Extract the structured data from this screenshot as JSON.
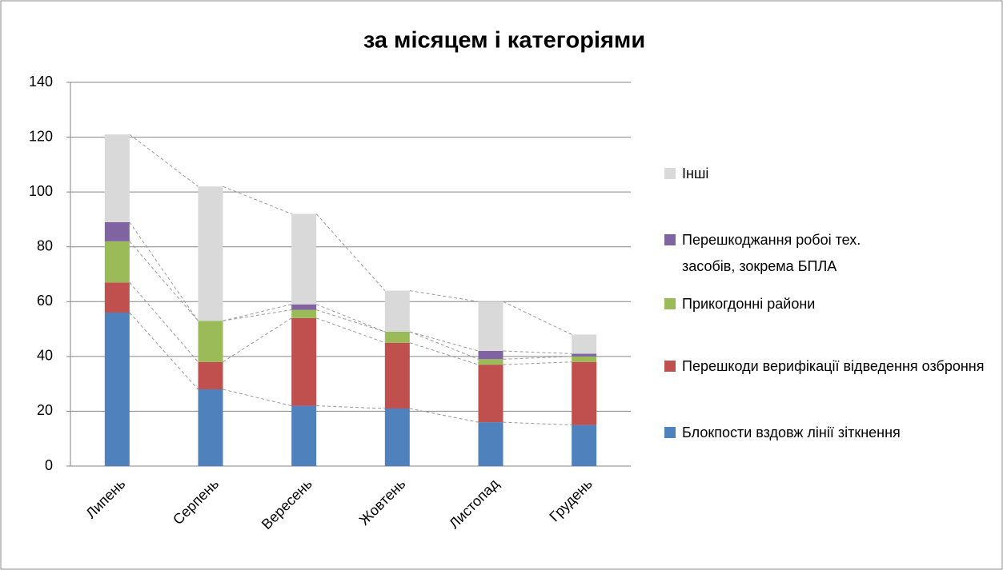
{
  "chart_data": {
    "type": "stacked_bar",
    "title": "за місяцем і категоріями",
    "categories": [
      "Липень",
      "Серпень",
      "Вересень",
      "Жовтень",
      "Листопад",
      "Грудень"
    ],
    "series": [
      {
        "name": "Блокпости вздовж лінії зіткнення",
        "color": "#4f81bd",
        "values": [
          56,
          28,
          22,
          21,
          16,
          15
        ]
      },
      {
        "name": "Перешкоди верифікації відведення озброння",
        "color": "#c0504d",
        "values": [
          11,
          10,
          32,
          24,
          21,
          23
        ]
      },
      {
        "name": "Прикогдонні райони",
        "color": "#9bbb59",
        "values": [
          15,
          15,
          3,
          4,
          2,
          2
        ]
      },
      {
        "name": "Перешкоджання робоі тех. засобів, зокрема БПЛА",
        "color": "#8064a2",
        "values": [
          7,
          0,
          2,
          0,
          3,
          1
        ]
      },
      {
        "name": "Інші",
        "color": "#d9d9d9",
        "values": [
          32,
          49,
          33,
          15,
          18,
          7
        ]
      }
    ],
    "ylim": [
      0,
      140
    ],
    "yticks": [
      0,
      20,
      40,
      60,
      80,
      100,
      120,
      140
    ],
    "grid": true,
    "legend": "right",
    "series_lines": true
  }
}
